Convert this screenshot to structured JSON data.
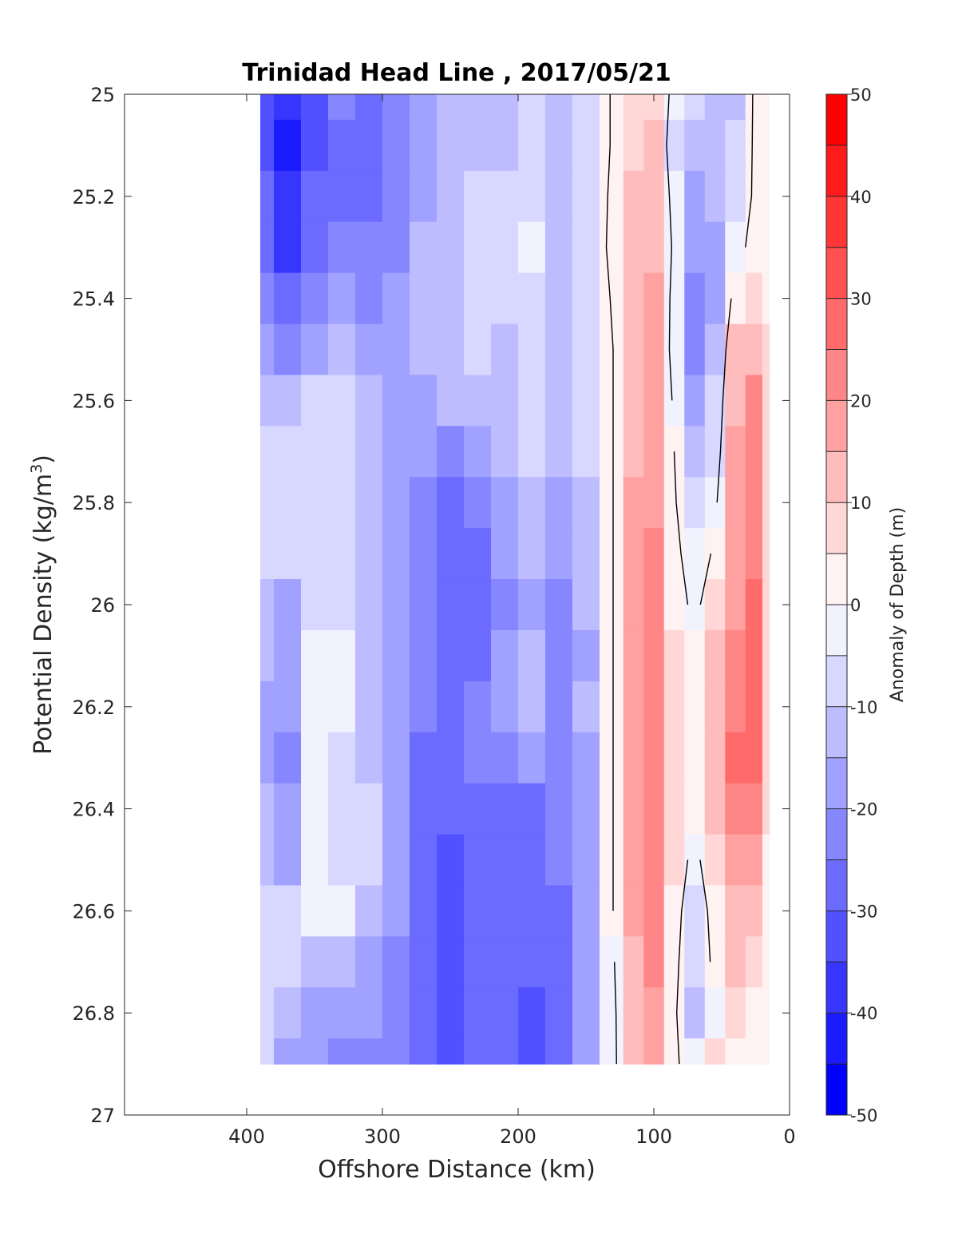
{
  "chart_data": {
    "type": "heatmap",
    "title": "Trinidad Head Line , 2017/05/21",
    "xlabel": "Offshore Distance (km)",
    "ylabel": "Potential Density (kg/m3)",
    "ylabel_main": "Potential Density (kg/m",
    "ylabel_sup": "3",
    "ylabel_close": ")",
    "xlim": [
      490,
      0
    ],
    "ylim": [
      27,
      25
    ],
    "y_reversed": true,
    "x_reversed": true,
    "x_ticks": [
      400,
      300,
      200,
      100,
      0
    ],
    "x_tick_labels": [
      "400",
      "300",
      "200",
      "100",
      "0"
    ],
    "y_ticks": [
      25,
      25.2,
      25.4,
      25.6,
      25.8,
      26,
      26.2,
      26.4,
      26.6,
      26.8,
      27
    ],
    "y_tick_labels": [
      "25",
      "25.2",
      "25.4",
      "25.6",
      "25.8",
      "26",
      "26.2",
      "26.4",
      "26.6",
      "26.8",
      "27"
    ],
    "colorbar": {
      "label": "Anomaly of Depth (m)",
      "range": [
        -50,
        50
      ],
      "levels": [
        -50,
        -45,
        -40,
        -35,
        -30,
        -25,
        -20,
        -15,
        -10,
        -5,
        0,
        5,
        10,
        15,
        20,
        25,
        30,
        35,
        40,
        45,
        50
      ],
      "tick_values": [
        50,
        40,
        30,
        20,
        10,
        0,
        -10,
        -20,
        -30,
        -40,
        -50
      ],
      "tick_labels": [
        "50",
        "40",
        "30",
        "20",
        "10",
        "0",
        "-10",
        "-20",
        "-30",
        "-40",
        "-50"
      ]
    },
    "grid": false,
    "x": [
      390,
      370,
      350,
      330,
      310,
      290,
      270,
      250,
      230,
      210,
      190,
      170,
      150,
      130,
      115,
      100,
      85,
      70,
      55,
      40,
      25,
      15
    ],
    "y": [
      25,
      25.1,
      25.2,
      25.3,
      25.4,
      25.5,
      25.6,
      25.7,
      25.8,
      25.9,
      26,
      26.1,
      26.2,
      26.3,
      26.4,
      26.5,
      26.6,
      26.7,
      26.8,
      26.9
    ],
    "z": [
      [
        -33,
        -38,
        -32,
        -25,
        -28,
        -22,
        -18,
        -14,
        -15,
        -11,
        -8,
        -14,
        -8,
        1,
        8,
        9,
        -3,
        -10,
        -14,
        -12,
        2,
        2
      ],
      [
        -32,
        -42,
        -32,
        -26,
        -28,
        -22,
        -18,
        -14,
        -13,
        -12,
        -8,
        -14,
        -8,
        1,
        9,
        10,
        -6,
        -13,
        -11,
        -10,
        2,
        2
      ],
      [
        -30,
        -40,
        -30,
        -27,
        -27,
        -22,
        -17,
        -13,
        -8,
        -10,
        -6,
        -14,
        -8,
        2,
        12,
        13,
        -4,
        -16,
        -15,
        -8,
        2,
        2
      ],
      [
        -27,
        -36,
        -28,
        -25,
        -24,
        -22,
        -15,
        -12,
        -7,
        -10,
        -5,
        -13,
        -6,
        2,
        13,
        14,
        -2,
        -17,
        -18,
        -4,
        4,
        2
      ],
      [
        -25,
        -30,
        -24,
        -20,
        -22,
        -20,
        -15,
        -13,
        -9,
        -8,
        -6,
        -13,
        -8,
        1,
        13,
        15,
        -4,
        -22,
        -16,
        4,
        7,
        3
      ],
      [
        -20,
        -24,
        -18,
        -14,
        -18,
        -20,
        -15,
        -12,
        -10,
        -12,
        -6,
        -12,
        -6,
        0,
        14,
        16,
        -5,
        -22,
        -13,
        11,
        13,
        5
      ],
      [
        -12,
        -15,
        -10,
        -10,
        -13,
        -17,
        -16,
        -14,
        -12,
        -12,
        -8,
        -14,
        -8,
        0,
        14,
        17,
        -2,
        -18,
        -9,
        14,
        20,
        6
      ],
      [
        -9,
        -9,
        -9,
        -10,
        -12,
        -16,
        -20,
        -24,
        -18,
        -14,
        -9,
        -15,
        -9,
        0,
        14,
        18,
        0,
        -14,
        -6,
        16,
        22,
        6
      ],
      [
        -8,
        -8,
        -8,
        -10,
        -13,
        -16,
        -22,
        -26,
        -24,
        -17,
        -11,
        -18,
        -11,
        0,
        15,
        19,
        1,
        -9,
        -2,
        17,
        23,
        7
      ],
      [
        -8,
        -8,
        -8,
        -9,
        -12,
        -16,
        -22,
        -27,
        -26,
        -20,
        -14,
        -20,
        -13,
        0,
        16,
        20,
        2,
        -4,
        1,
        18,
        24,
        7
      ],
      [
        -14,
        -18,
        -10,
        -10,
        -12,
        -17,
        -24,
        -29,
        -27,
        -22,
        -16,
        -21,
        -14,
        0,
        15,
        20,
        4,
        -2,
        5,
        18,
        25,
        7
      ],
      [
        -13,
        -17,
        -2,
        -5,
        -11,
        -17,
        -24,
        -29,
        -26,
        -20,
        -15,
        -22,
        -16,
        0,
        15,
        20,
        7,
        1,
        11,
        21,
        27,
        7
      ],
      [
        -16,
        -20,
        -2,
        -4,
        -11,
        -18,
        -25,
        -29,
        -25,
        -18,
        -13,
        -21,
        -15,
        0,
        16,
        21,
        8,
        2,
        12,
        23,
        27,
        7
      ],
      [
        -18,
        -25,
        -2,
        -7,
        -13,
        -20,
        -27,
        -29,
        -24,
        -21,
        -19,
        -24,
        -16,
        0,
        16,
        22,
        9,
        3,
        14,
        25,
        28,
        6
      ],
      [
        -14,
        -18,
        -3,
        -8,
        -10,
        -20,
        -28,
        -30,
        -26,
        -27,
        -30,
        -25,
        -16,
        0,
        17,
        22,
        8,
        2,
        12,
        21,
        21,
        5
      ],
      [
        -11,
        -16,
        -2,
        -7,
        -9,
        -20,
        -29,
        -31,
        -28,
        -28,
        -30,
        -25,
        -16,
        0,
        17,
        22,
        6,
        -3,
        8,
        16,
        16,
        4
      ],
      [
        -8,
        -9,
        -2,
        -5,
        -11,
        -20,
        -29,
        -31,
        -29,
        -29,
        -30,
        -26,
        -17,
        0,
        16,
        21,
        4,
        -7,
        4,
        12,
        12,
        4
      ],
      [
        -7,
        -10,
        -11,
        -13,
        -16,
        -21,
        -29,
        -34,
        -30,
        -30,
        -30,
        -27,
        -17,
        -1,
        14,
        20,
        3,
        -10,
        3,
        10,
        6,
        3
      ],
      [
        -8,
        -14,
        -16,
        -18,
        -20,
        -23,
        -30,
        -33,
        -30,
        -30,
        -32,
        -28,
        -18,
        -2,
        12,
        19,
        2,
        -14,
        -3,
        6,
        3,
        2
      ],
      [
        -10,
        -17,
        -19,
        -21,
        -22,
        -24,
        -30,
        -32,
        -29,
        -28,
        -31,
        -27,
        -18,
        -2,
        10,
        17,
        1,
        -3,
        5,
        3,
        2,
        1
      ]
    ],
    "zero_contour": true,
    "colors": {
      "negative_extreme": "#0000ff",
      "neutral": "#ffffff",
      "positive_extreme": "#ff0000",
      "contour_line": "#000000",
      "axis": "#262626"
    }
  }
}
